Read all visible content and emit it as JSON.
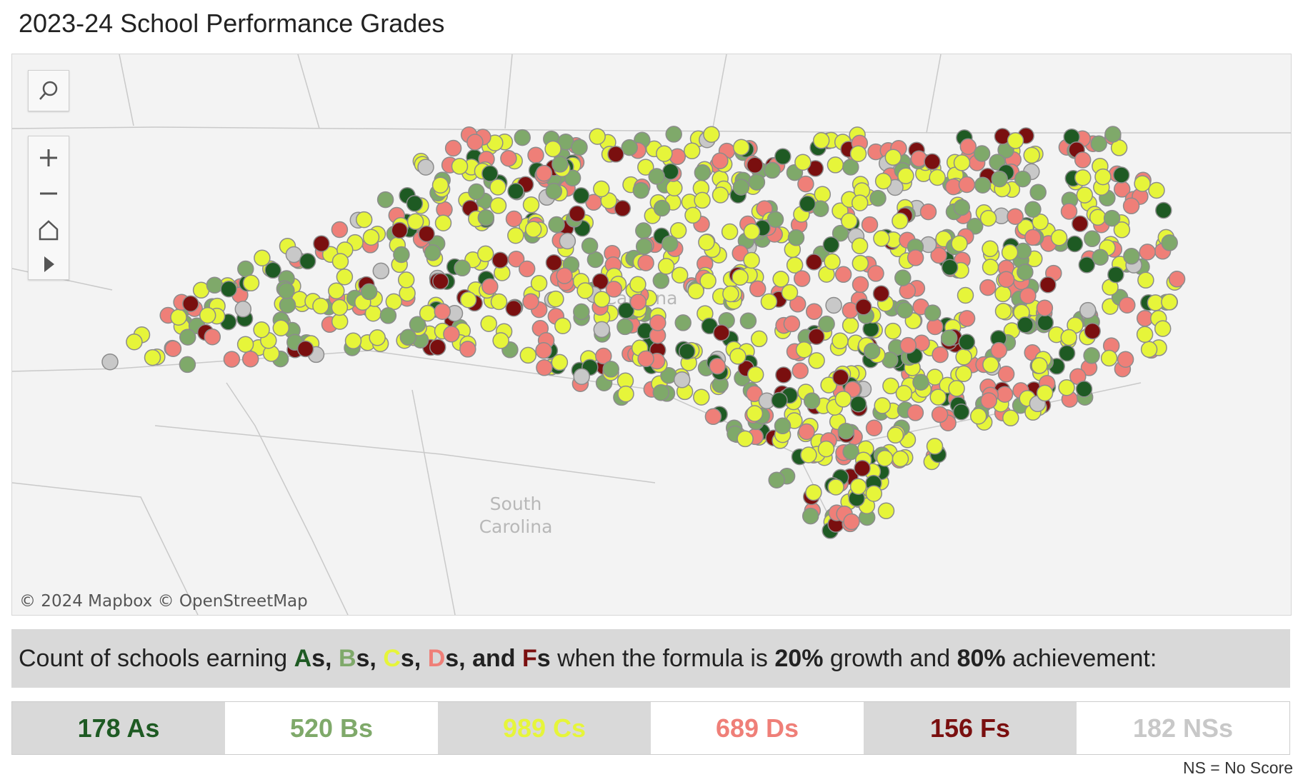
{
  "title": "2023-24 School Performance Grades",
  "map": {
    "labels": [
      "South",
      "Carolina",
      "Carolina"
    ],
    "attribution": "© 2024 Mapbox  © OpenStreetMap"
  },
  "statement": [
    {
      "text": "Count of schools earning "
    },
    {
      "text": "A",
      "bold": true,
      "color": "#1e5a23"
    },
    {
      "text": "s, ",
      "bold": true
    },
    {
      "text": "B",
      "bold": true,
      "color": "#7fa96a"
    },
    {
      "text": "s, ",
      "bold": true
    },
    {
      "text": "C",
      "bold": true,
      "color": "#e6f53a"
    },
    {
      "text": "s, ",
      "bold": true
    },
    {
      "text": "D",
      "bold": true,
      "color": "#ef7f78"
    },
    {
      "text": "s, and ",
      "bold": true
    },
    {
      "text": "F",
      "bold": true,
      "color": "#7a0f0f"
    },
    {
      "text": "s",
      "bold": true
    },
    {
      "text": " when the formula is "
    },
    {
      "text": "20%",
      "bold": true
    },
    {
      "text": " growth and "
    },
    {
      "text": "80%",
      "bold": true
    },
    {
      "text": " achievement:"
    }
  ],
  "summary": [
    {
      "label": "178 As",
      "color": "#1e5a23",
      "bg": "#d9d9d9"
    },
    {
      "label": "520 Bs",
      "color": "#7fa96a",
      "bg": "#ffffff"
    },
    {
      "label": "989 Cs",
      "color": "#e6f53a",
      "bg": "#d9d9d9"
    },
    {
      "label": "689 Ds",
      "color": "#ef7f78",
      "bg": "#ffffff"
    },
    {
      "label": "156 Fs",
      "color": "#7a0f0f",
      "bg": "#d9d9d9"
    },
    {
      "label": "182 NSs",
      "color": "#c8c8c8",
      "bg": "#ffffff"
    }
  ],
  "note": "NS = No Score"
}
